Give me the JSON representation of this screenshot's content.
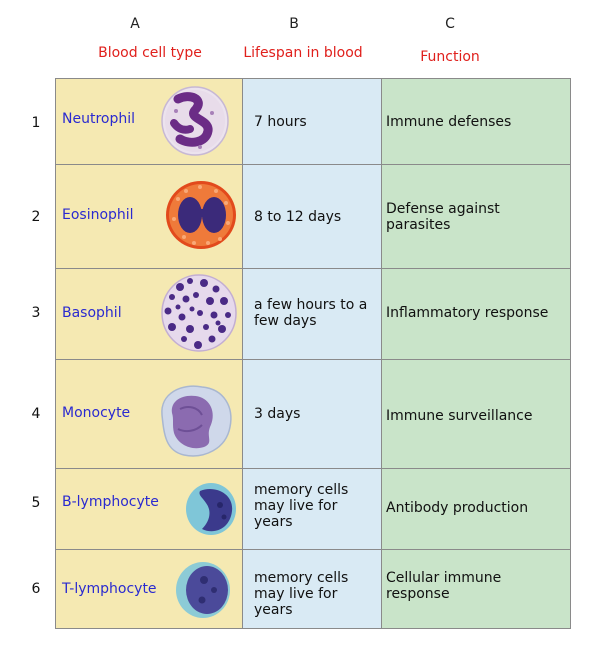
{
  "columns": {
    "letters": [
      "A",
      "B",
      "C"
    ],
    "headers": [
      "Blood cell type",
      "Lifespan in blood",
      "Function"
    ]
  },
  "rows": [
    {
      "num": "1",
      "type": "Neutrophil",
      "lifespan": "7 hours",
      "function": "Immune defenses"
    },
    {
      "num": "2",
      "type": "Eosinophil",
      "lifespan": "8 to 12 days",
      "function": "Defense against parasites"
    },
    {
      "num": "3",
      "type": "Basophil",
      "lifespan": "a few hours to a few days",
      "function": "Inflammatory response"
    },
    {
      "num": "4",
      "type": "Monocyte",
      "lifespan": "3 days",
      "function": "Immune surveillance"
    },
    {
      "num": "5",
      "type": "B-lymphocyte",
      "lifespan": "memory cells may live for years",
      "function": "Antibody production"
    },
    {
      "num": "6",
      "type": "T-lymphocyte",
      "lifespan": "memory cells may live for years",
      "function": "Cellular immune response"
    }
  ],
  "colors": {
    "header_text": "#e0201c",
    "cell_name_text": "#2a2ad0",
    "col_a_bg": "#f5e9b2",
    "col_b_bg": "#d9eaf4",
    "col_c_bg": "#c9e4c9"
  }
}
